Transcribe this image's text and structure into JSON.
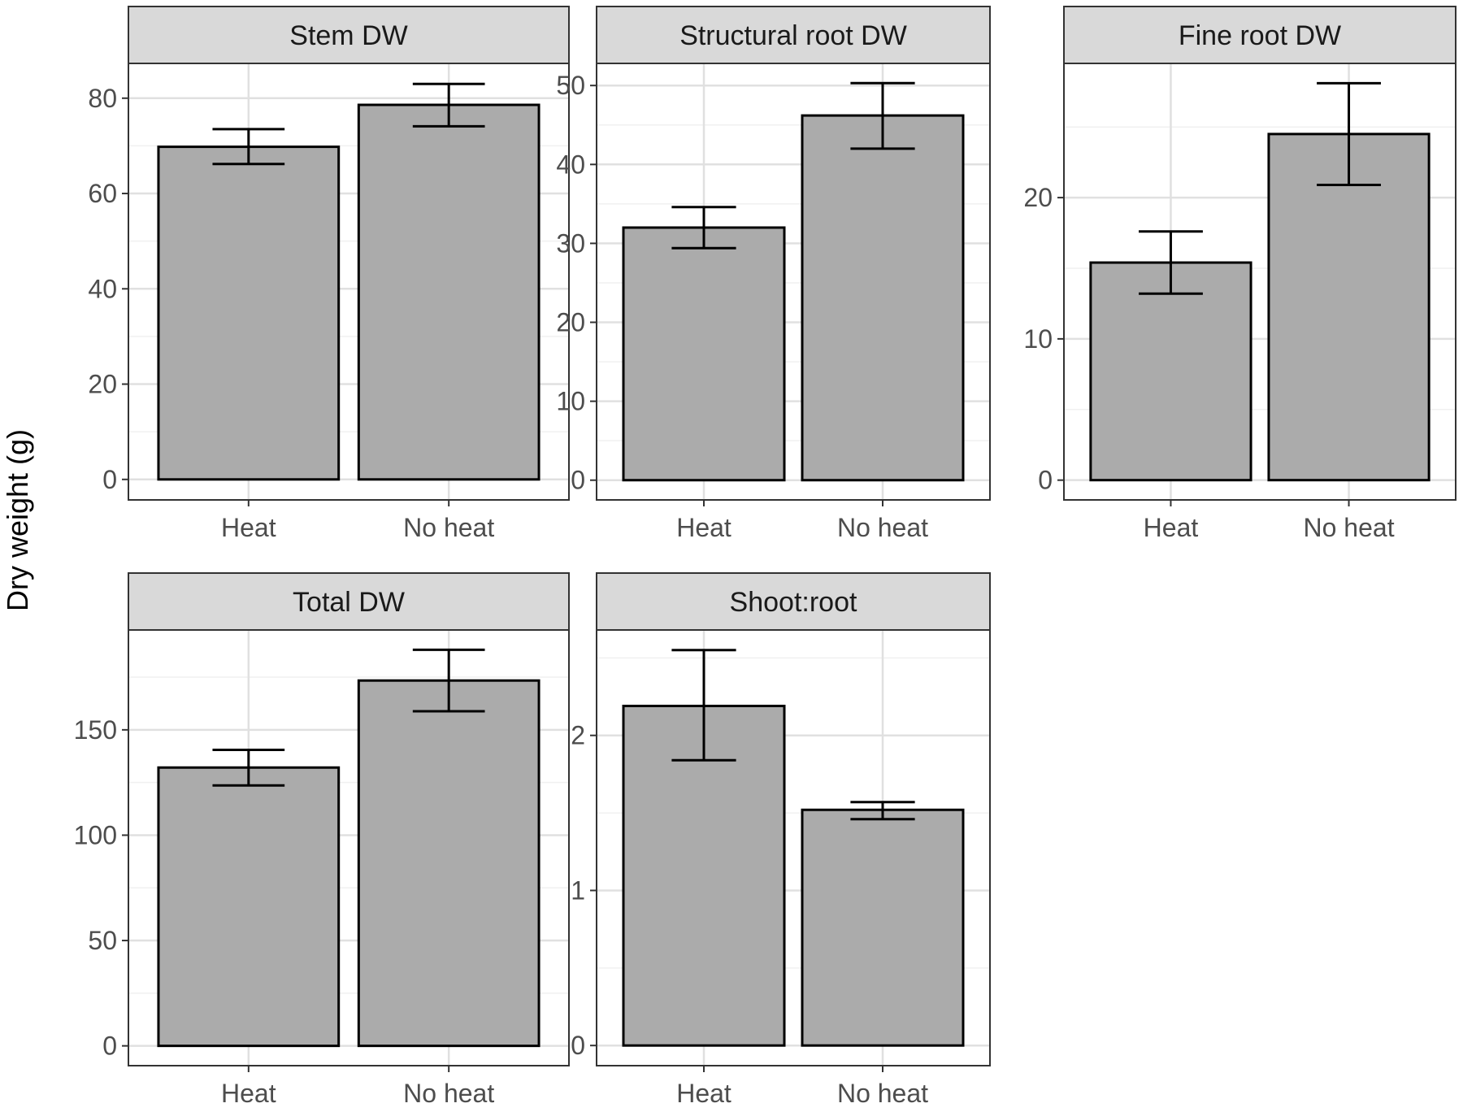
{
  "figure": {
    "ylabel": "Dry weight (g)",
    "colors": {
      "bar_fill": "#ababab",
      "bar_stroke": "#000000",
      "strip_fill": "#d9d9d9",
      "panel_border": "#333333",
      "grid_major": "#e0e0e0",
      "grid_minor": "#f0f0f0"
    }
  },
  "chart_data": [
    {
      "type": "bar",
      "title": "Stem DW",
      "categories": [
        "Heat",
        "No heat"
      ],
      "values": [
        69.8,
        78.6
      ],
      "error_low": [
        66.2,
        74.1
      ],
      "error_high": [
        73.5,
        83.0
      ],
      "yticks": [
        0,
        20,
        40,
        60,
        80
      ],
      "ylim": [
        -4.3,
        87.3
      ],
      "xlabel": "",
      "ylabel": "Dry weight (g)"
    },
    {
      "type": "bar",
      "title": "Structural root DW",
      "categories": [
        "Heat",
        "No heat"
      ],
      "values": [
        32.0,
        46.2
      ],
      "error_low": [
        29.4,
        42.0
      ],
      "error_high": [
        34.6,
        50.3
      ],
      "yticks": [
        0,
        10,
        20,
        30,
        40,
        50
      ],
      "ylim": [
        -2.5,
        52.8
      ],
      "xlabel": "",
      "ylabel": "Dry weight (g)"
    },
    {
      "type": "bar",
      "title": "Fine root DW",
      "categories": [
        "Heat",
        "No heat"
      ],
      "values": [
        15.4,
        24.5
      ],
      "error_low": [
        13.2,
        20.9
      ],
      "error_high": [
        17.6,
        28.1
      ],
      "yticks": [
        0,
        10,
        20
      ],
      "ylim": [
        -1.4,
        29.5
      ],
      "xlabel": "",
      "ylabel": "Dry weight (g)"
    },
    {
      "type": "bar",
      "title": "Total DW",
      "categories": [
        "Heat",
        "No heat"
      ],
      "values": [
        132.1,
        173.4
      ],
      "error_low": [
        123.6,
        158.8
      ],
      "error_high": [
        140.5,
        188.0
      ],
      "yticks": [
        0,
        50,
        100,
        150
      ],
      "ylim": [
        -9.4,
        197.4
      ],
      "xlabel": "",
      "ylabel": "Dry weight (g)"
    },
    {
      "type": "bar",
      "title": "Shoot:root",
      "categories": [
        "Heat",
        "No heat"
      ],
      "values": [
        2.19,
        1.52
      ],
      "error_low": [
        1.84,
        1.46
      ],
      "error_high": [
        2.55,
        1.57
      ],
      "yticks": [
        0,
        1,
        2
      ],
      "ylim": [
        -0.13,
        2.68
      ],
      "xlabel": "",
      "ylabel": "Dry weight (g)"
    }
  ]
}
